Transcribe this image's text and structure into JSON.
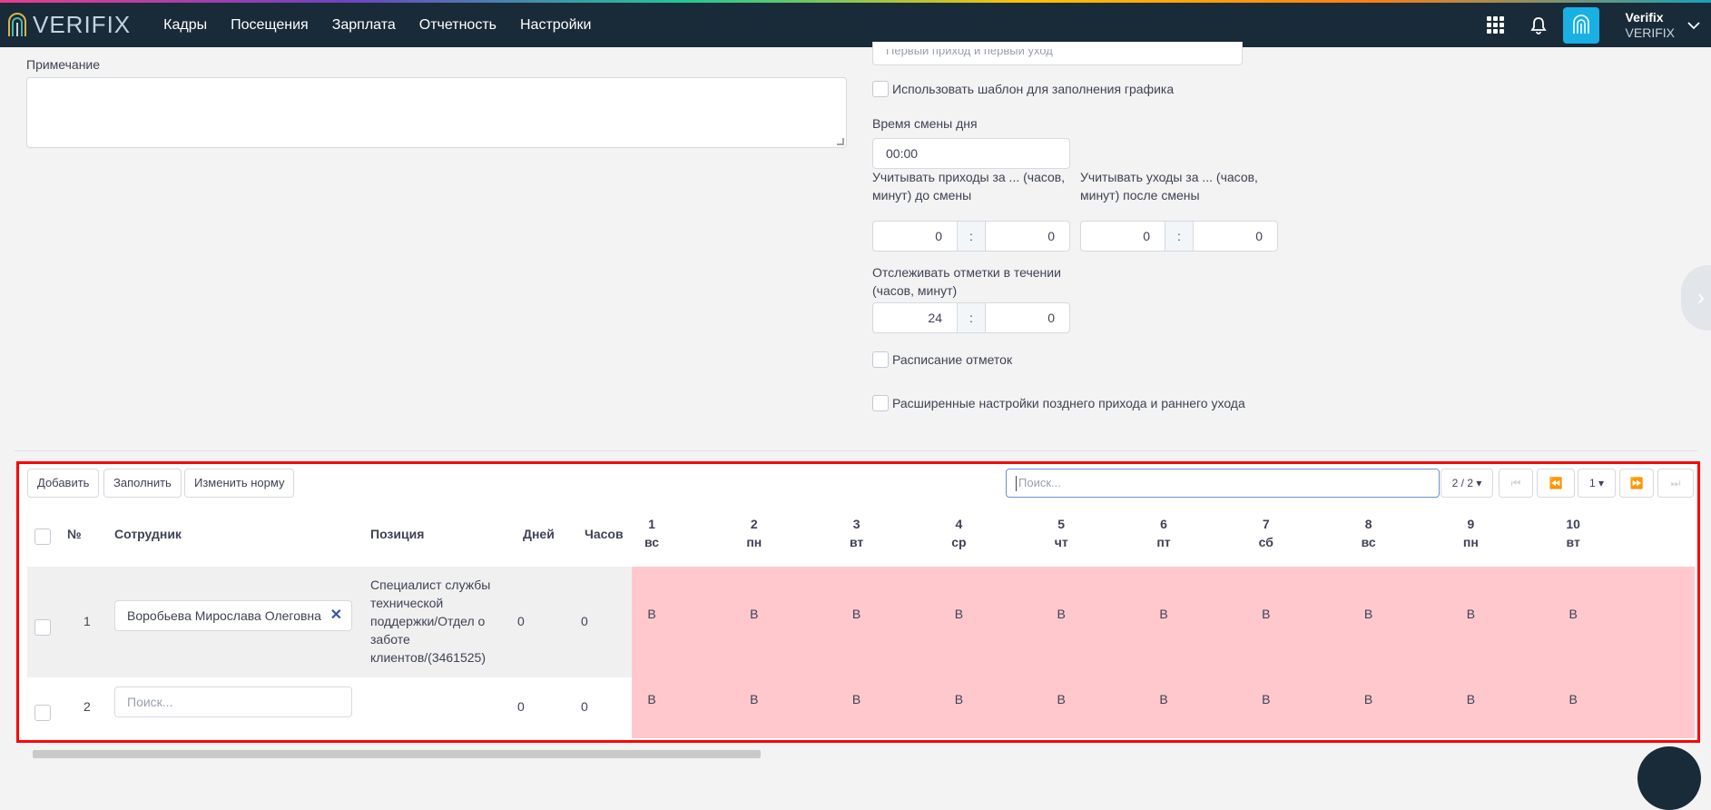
{
  "nav": {
    "logo_text": "VERIFIX",
    "items": [
      "Кадры",
      "Посещения",
      "Зарплата",
      "Отчетность",
      "Настройки"
    ],
    "user_name": "Verifix",
    "user_org": "VERIFIX"
  },
  "form": {
    "note_label": "Примечание",
    "select_value": "Первый приход и первый уход",
    "use_template_label": "Использовать шаблон для заполнения графика",
    "shift_time_label": "Время смены дня",
    "shift_time_value": "00:00",
    "arrivals_label_1": "Учитывать приходы за ... (часов,",
    "arrivals_label_2": "минут) до смены",
    "departures_label_1": "Учитывать уходы за ... (часов,",
    "departures_label_2": "минут) после смены",
    "arr_h": "0",
    "arr_m": "0",
    "dep_h": "0",
    "dep_m": "0",
    "track_label_1": "Отслеживать отметки в течении",
    "track_label_2": "(часов, минут)",
    "track_h": "24",
    "track_m": "0",
    "colon": ":",
    "schedule_marks_label": "Расписание отметок",
    "advanced_label": "Расширенные настройки позднего прихода и раннего ухода"
  },
  "toolbar": {
    "add": "Добавить",
    "fill": "Заполнить",
    "change_norm": "Изменить норму",
    "search_placeholder": "Поиск...",
    "pages": "2 / 2",
    "page_select": "1"
  },
  "table": {
    "headers": {
      "num": "№",
      "employee": "Сотрудник",
      "position": "Позиция",
      "days": "Дней",
      "hours": "Часов"
    },
    "day_columns": [
      {
        "num": "1",
        "dow": "вс"
      },
      {
        "num": "2",
        "dow": "пн"
      },
      {
        "num": "3",
        "dow": "вт"
      },
      {
        "num": "4",
        "dow": "ср"
      },
      {
        "num": "5",
        "dow": "чт"
      },
      {
        "num": "6",
        "dow": "пт"
      },
      {
        "num": "7",
        "dow": "сб"
      },
      {
        "num": "8",
        "dow": "вс"
      },
      {
        "num": "9",
        "dow": "пн"
      },
      {
        "num": "10",
        "dow": "вт"
      }
    ],
    "rows": [
      {
        "num": "1",
        "employee": "Воробьева Мирослава Олеговна",
        "position_lines": [
          "Специалист службы",
          "технической",
          "поддержки/Отдел о",
          "заботе",
          "клиентов/(3461525)"
        ],
        "days": "0",
        "hours": "0",
        "day_values": [
          "В",
          "В",
          "В",
          "В",
          "В",
          "В",
          "В",
          "В",
          "В",
          "В"
        ]
      },
      {
        "num": "2",
        "employee_placeholder": "Поиск...",
        "days": "0",
        "hours": "0",
        "day_values": [
          "В",
          "В",
          "В",
          "В",
          "В",
          "В",
          "В",
          "В",
          "В",
          "В"
        ]
      }
    ]
  }
}
